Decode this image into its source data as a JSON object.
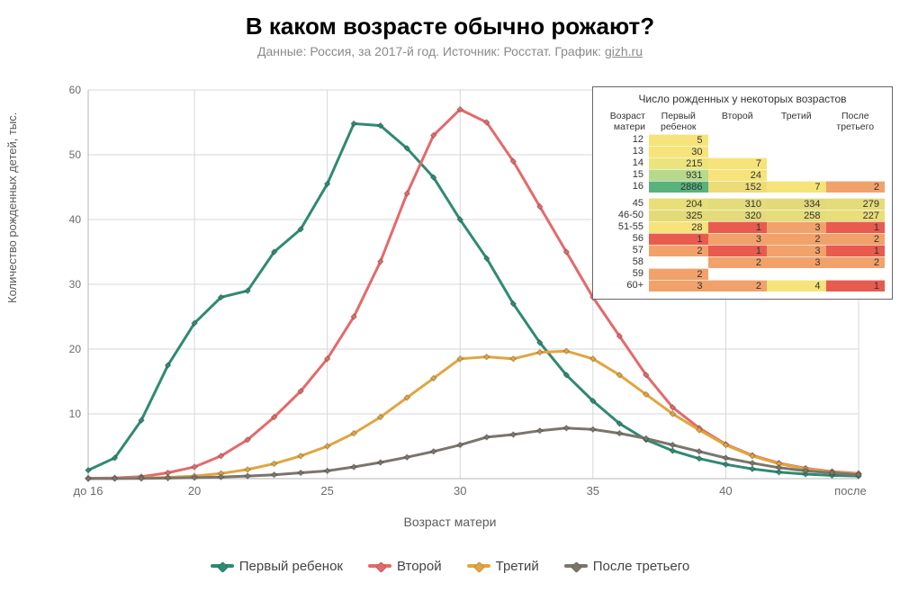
{
  "title": "В каком возрасте обычно рожают?",
  "title_fontsize": 26,
  "subtitle_prefix": "Данные: Россия, за 2017-й год. Источник: Росстат. График: ",
  "subtitle_link_text": "gizh.ru",
  "subtitle_fontsize": 14,
  "xlabel": "Возраст матери",
  "ylabel": "Количество рожденных детей, тыс.",
  "plot": {
    "x_min": 16,
    "x_max": 45,
    "y_min": 0,
    "y_max": 60,
    "grid_color": "#d7d7d7",
    "background": "#ffffff",
    "yticks": [
      10,
      20,
      30,
      40,
      50,
      60
    ],
    "xticks": [
      {
        "x": 16,
        "label": "до 16"
      },
      {
        "x": 20,
        "label": "20"
      },
      {
        "x": 25,
        "label": "25"
      },
      {
        "x": 30,
        "label": "30"
      },
      {
        "x": 35,
        "label": "35"
      },
      {
        "x": 40,
        "label": "40"
      },
      {
        "x": 45,
        "label": "после 45"
      }
    ]
  },
  "series": [
    {
      "id": "first",
      "label": "Первый ребенок",
      "color": "#2f8a73",
      "data": [
        [
          16,
          1.3
        ],
        [
          17,
          3.2
        ],
        [
          18,
          9.0
        ],
        [
          19,
          17.5
        ],
        [
          20,
          24.0
        ],
        [
          21,
          28.0
        ],
        [
          22,
          29.0
        ],
        [
          23,
          35.0
        ],
        [
          24,
          38.5
        ],
        [
          25,
          45.5
        ],
        [
          26,
          54.8
        ],
        [
          27,
          54.5
        ],
        [
          28,
          51.0
        ],
        [
          29,
          46.5
        ],
        [
          30,
          40.0
        ],
        [
          31,
          34.0
        ],
        [
          32,
          27.0
        ],
        [
          33,
          21.0
        ],
        [
          34,
          16.0
        ],
        [
          35,
          12.0
        ],
        [
          36,
          8.5
        ],
        [
          37,
          6.0
        ],
        [
          38,
          4.3
        ],
        [
          39,
          3.1
        ],
        [
          40,
          2.2
        ],
        [
          41,
          1.5
        ],
        [
          42,
          1.0
        ],
        [
          43,
          0.7
        ],
        [
          44,
          0.5
        ],
        [
          45,
          0.4
        ]
      ]
    },
    {
      "id": "second",
      "label": "Второй",
      "color": "#e36a6a",
      "data": [
        [
          16,
          0.05
        ],
        [
          17,
          0.1
        ],
        [
          18,
          0.3
        ],
        [
          19,
          0.9
        ],
        [
          20,
          1.8
        ],
        [
          21,
          3.5
        ],
        [
          22,
          6.0
        ],
        [
          23,
          9.5
        ],
        [
          24,
          13.5
        ],
        [
          25,
          18.5
        ],
        [
          26,
          25.0
        ],
        [
          27,
          33.5
        ],
        [
          28,
          44.0
        ],
        [
          29,
          53.0
        ],
        [
          30,
          57.0
        ],
        [
          31,
          55.0
        ],
        [
          32,
          49.0
        ],
        [
          33,
          42.0
        ],
        [
          34,
          35.0
        ],
        [
          35,
          28.0
        ],
        [
          36,
          22.0
        ],
        [
          37,
          16.0
        ],
        [
          38,
          11.0
        ],
        [
          39,
          7.8
        ],
        [
          40,
          5.3
        ],
        [
          41,
          3.6
        ],
        [
          42,
          2.4
        ],
        [
          43,
          1.6
        ],
        [
          44,
          1.1
        ],
        [
          45,
          0.8
        ]
      ]
    },
    {
      "id": "third",
      "label": "Третий",
      "color": "#e0a640",
      "data": [
        [
          16,
          0.02
        ],
        [
          17,
          0.04
        ],
        [
          18,
          0.08
        ],
        [
          19,
          0.2
        ],
        [
          20,
          0.4
        ],
        [
          21,
          0.8
        ],
        [
          22,
          1.4
        ],
        [
          23,
          2.3
        ],
        [
          24,
          3.5
        ],
        [
          25,
          5.0
        ],
        [
          26,
          7.0
        ],
        [
          27,
          9.5
        ],
        [
          28,
          12.5
        ],
        [
          29,
          15.5
        ],
        [
          30,
          18.5
        ],
        [
          31,
          18.8
        ],
        [
          32,
          18.5
        ],
        [
          33,
          19.5
        ],
        [
          34,
          19.7
        ],
        [
          35,
          18.5
        ],
        [
          36,
          16.0
        ],
        [
          37,
          13.0
        ],
        [
          38,
          10.0
        ],
        [
          39,
          7.5
        ],
        [
          40,
          5.2
        ],
        [
          41,
          3.5
        ],
        [
          42,
          2.3
        ],
        [
          43,
          1.5
        ],
        [
          44,
          1.0
        ],
        [
          45,
          0.7
        ]
      ]
    },
    {
      "id": "fourth",
      "label": "После третьего",
      "color": "#7a766c",
      "data": [
        [
          16,
          0.01
        ],
        [
          17,
          0.02
        ],
        [
          18,
          0.04
        ],
        [
          19,
          0.08
        ],
        [
          20,
          0.15
        ],
        [
          21,
          0.25
        ],
        [
          22,
          0.4
        ],
        [
          23,
          0.6
        ],
        [
          24,
          0.9
        ],
        [
          25,
          1.2
        ],
        [
          26,
          1.8
        ],
        [
          27,
          2.5
        ],
        [
          28,
          3.3
        ],
        [
          29,
          4.2
        ],
        [
          30,
          5.2
        ],
        [
          31,
          6.4
        ],
        [
          32,
          6.8
        ],
        [
          33,
          7.4
        ],
        [
          34,
          7.8
        ],
        [
          35,
          7.6
        ],
        [
          36,
          7.0
        ],
        [
          37,
          6.2
        ],
        [
          38,
          5.2
        ],
        [
          39,
          4.2
        ],
        [
          40,
          3.2
        ],
        [
          41,
          2.4
        ],
        [
          42,
          1.7
        ],
        [
          43,
          1.2
        ],
        [
          44,
          0.9
        ],
        [
          45,
          0.6
        ]
      ]
    }
  ],
  "inset": {
    "title": "Число рожденных у некоторых возрастов",
    "headers": [
      "Возраст матери",
      "Первый ребенок",
      "Второй",
      "Третий",
      "После третьего"
    ],
    "blocks": [
      {
        "rows": [
          {
            "age": "12",
            "cells": [
              {
                "v": "5",
                "c": "#f6e47a"
              },
              {
                "v": "",
                "c": ""
              },
              {
                "v": "",
                "c": ""
              },
              {
                "v": "",
                "c": ""
              }
            ]
          },
          {
            "age": "13",
            "cells": [
              {
                "v": "30",
                "c": "#f6e47a"
              },
              {
                "v": "",
                "c": ""
              },
              {
                "v": "",
                "c": ""
              },
              {
                "v": "",
                "c": ""
              }
            ]
          },
          {
            "age": "14",
            "cells": [
              {
                "v": "215",
                "c": "#ebe47c"
              },
              {
                "v": "7",
                "c": "#f6e47a"
              },
              {
                "v": "",
                "c": ""
              },
              {
                "v": "",
                "c": ""
              }
            ]
          },
          {
            "age": "15",
            "cells": [
              {
                "v": "931",
                "c": "#b7d98c"
              },
              {
                "v": "24",
                "c": "#f6e47a"
              },
              {
                "v": "",
                "c": ""
              },
              {
                "v": "",
                "c": ""
              }
            ]
          },
          {
            "age": "16",
            "cells": [
              {
                "v": "2886",
                "c": "#58b27b"
              },
              {
                "v": "152",
                "c": "#ecdb78"
              },
              {
                "v": "7",
                "c": "#f6e47a"
              },
              {
                "v": "2",
                "c": "#f1a26a"
              }
            ]
          }
        ]
      },
      {
        "rows": [
          {
            "age": "45",
            "cells": [
              {
                "v": "204",
                "c": "#e9df79"
              },
              {
                "v": "310",
                "c": "#e3dc7b"
              },
              {
                "v": "334",
                "c": "#e2da7a"
              },
              {
                "v": "279",
                "c": "#e4db7a"
              }
            ]
          },
          {
            "age": "46-50",
            "cells": [
              {
                "v": "325",
                "c": "#e3db7a"
              },
              {
                "v": "320",
                "c": "#e3db7a"
              },
              {
                "v": "258",
                "c": "#e5dc7a"
              },
              {
                "v": "227",
                "c": "#e8de7a"
              }
            ]
          },
          {
            "age": "51-55",
            "cells": [
              {
                "v": "28",
                "c": "#f6e47a"
              },
              {
                "v": "1",
                "c": "#e85b4f"
              },
              {
                "v": "3",
                "c": "#f1a26a"
              },
              {
                "v": "1",
                "c": "#e85b4f"
              }
            ]
          },
          {
            "age": "56",
            "cells": [
              {
                "v": "1",
                "c": "#e85b4f"
              },
              {
                "v": "3",
                "c": "#f1a26a"
              },
              {
                "v": "2",
                "c": "#f1a26a"
              },
              {
                "v": "2",
                "c": "#f1a26a"
              }
            ]
          },
          {
            "age": "57",
            "cells": [
              {
                "v": "2",
                "c": "#f1a26a"
              },
              {
                "v": "1",
                "c": "#e85b4f"
              },
              {
                "v": "3",
                "c": "#f1a26a"
              },
              {
                "v": "1",
                "c": "#e85b4f"
              }
            ]
          },
          {
            "age": "58",
            "cells": [
              {
                "v": "",
                "c": ""
              },
              {
                "v": "2",
                "c": "#f1a26a"
              },
              {
                "v": "3",
                "c": "#f1a26a"
              },
              {
                "v": "2",
                "c": "#f1a26a"
              }
            ]
          },
          {
            "age": "59",
            "cells": [
              {
                "v": "2",
                "c": "#f1a26a"
              },
              {
                "v": "",
                "c": ""
              },
              {
                "v": "",
                "c": ""
              },
              {
                "v": "",
                "c": ""
              }
            ]
          },
          {
            "age": "60+",
            "cells": [
              {
                "v": "3",
                "c": "#f1a26a"
              },
              {
                "v": "2",
                "c": "#f1a26a"
              },
              {
                "v": "4",
                "c": "#f6e47a"
              },
              {
                "v": "1",
                "c": "#e85b4f"
              }
            ]
          }
        ]
      }
    ]
  },
  "legend": [
    {
      "label": "Первый ребенок",
      "color": "#2f8a73"
    },
    {
      "label": "Второй",
      "color": "#e36a6a"
    },
    {
      "label": "Третий",
      "color": "#e0a640"
    },
    {
      "label": "После третьего",
      "color": "#7a766c"
    }
  ]
}
